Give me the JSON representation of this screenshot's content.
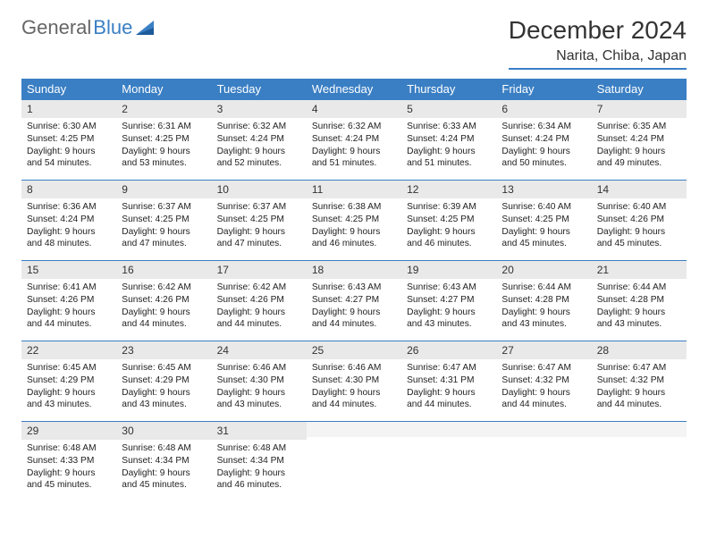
{
  "brand": {
    "part1": "General",
    "part2": "Blue"
  },
  "title": "December 2024",
  "location": "Narita, Chiba, Japan",
  "colors": {
    "header_bg": "#3a7fc4",
    "header_text": "#ffffff",
    "daynum_bg": "#e9e9e9",
    "border": "#3a7fc4",
    "text": "#333333",
    "page_bg": "#ffffff"
  },
  "font": {
    "family": "Arial",
    "title_size": 28,
    "location_size": 16,
    "header_size": 13,
    "body_size": 10.2
  },
  "weekdays": [
    "Sunday",
    "Monday",
    "Tuesday",
    "Wednesday",
    "Thursday",
    "Friday",
    "Saturday"
  ],
  "days": [
    {
      "n": "1",
      "sr": "6:30 AM",
      "ss": "4:25 PM",
      "dl": "9 hours and 54 minutes."
    },
    {
      "n": "2",
      "sr": "6:31 AM",
      "ss": "4:25 PM",
      "dl": "9 hours and 53 minutes."
    },
    {
      "n": "3",
      "sr": "6:32 AM",
      "ss": "4:24 PM",
      "dl": "9 hours and 52 minutes."
    },
    {
      "n": "4",
      "sr": "6:32 AM",
      "ss": "4:24 PM",
      "dl": "9 hours and 51 minutes."
    },
    {
      "n": "5",
      "sr": "6:33 AM",
      "ss": "4:24 PM",
      "dl": "9 hours and 51 minutes."
    },
    {
      "n": "6",
      "sr": "6:34 AM",
      "ss": "4:24 PM",
      "dl": "9 hours and 50 minutes."
    },
    {
      "n": "7",
      "sr": "6:35 AM",
      "ss": "4:24 PM",
      "dl": "9 hours and 49 minutes."
    },
    {
      "n": "8",
      "sr": "6:36 AM",
      "ss": "4:24 PM",
      "dl": "9 hours and 48 minutes."
    },
    {
      "n": "9",
      "sr": "6:37 AM",
      "ss": "4:25 PM",
      "dl": "9 hours and 47 minutes."
    },
    {
      "n": "10",
      "sr": "6:37 AM",
      "ss": "4:25 PM",
      "dl": "9 hours and 47 minutes."
    },
    {
      "n": "11",
      "sr": "6:38 AM",
      "ss": "4:25 PM",
      "dl": "9 hours and 46 minutes."
    },
    {
      "n": "12",
      "sr": "6:39 AM",
      "ss": "4:25 PM",
      "dl": "9 hours and 46 minutes."
    },
    {
      "n": "13",
      "sr": "6:40 AM",
      "ss": "4:25 PM",
      "dl": "9 hours and 45 minutes."
    },
    {
      "n": "14",
      "sr": "6:40 AM",
      "ss": "4:26 PM",
      "dl": "9 hours and 45 minutes."
    },
    {
      "n": "15",
      "sr": "6:41 AM",
      "ss": "4:26 PM",
      "dl": "9 hours and 44 minutes."
    },
    {
      "n": "16",
      "sr": "6:42 AM",
      "ss": "4:26 PM",
      "dl": "9 hours and 44 minutes."
    },
    {
      "n": "17",
      "sr": "6:42 AM",
      "ss": "4:26 PM",
      "dl": "9 hours and 44 minutes."
    },
    {
      "n": "18",
      "sr": "6:43 AM",
      "ss": "4:27 PM",
      "dl": "9 hours and 44 minutes."
    },
    {
      "n": "19",
      "sr": "6:43 AM",
      "ss": "4:27 PM",
      "dl": "9 hours and 43 minutes."
    },
    {
      "n": "20",
      "sr": "6:44 AM",
      "ss": "4:28 PM",
      "dl": "9 hours and 43 minutes."
    },
    {
      "n": "21",
      "sr": "6:44 AM",
      "ss": "4:28 PM",
      "dl": "9 hours and 43 minutes."
    },
    {
      "n": "22",
      "sr": "6:45 AM",
      "ss": "4:29 PM",
      "dl": "9 hours and 43 minutes."
    },
    {
      "n": "23",
      "sr": "6:45 AM",
      "ss": "4:29 PM",
      "dl": "9 hours and 43 minutes."
    },
    {
      "n": "24",
      "sr": "6:46 AM",
      "ss": "4:30 PM",
      "dl": "9 hours and 43 minutes."
    },
    {
      "n": "25",
      "sr": "6:46 AM",
      "ss": "4:30 PM",
      "dl": "9 hours and 44 minutes."
    },
    {
      "n": "26",
      "sr": "6:47 AM",
      "ss": "4:31 PM",
      "dl": "9 hours and 44 minutes."
    },
    {
      "n": "27",
      "sr": "6:47 AM",
      "ss": "4:32 PM",
      "dl": "9 hours and 44 minutes."
    },
    {
      "n": "28",
      "sr": "6:47 AM",
      "ss": "4:32 PM",
      "dl": "9 hours and 44 minutes."
    },
    {
      "n": "29",
      "sr": "6:48 AM",
      "ss": "4:33 PM",
      "dl": "9 hours and 45 minutes."
    },
    {
      "n": "30",
      "sr": "6:48 AM",
      "ss": "4:34 PM",
      "dl": "9 hours and 45 minutes."
    },
    {
      "n": "31",
      "sr": "6:48 AM",
      "ss": "4:34 PM",
      "dl": "9 hours and 46 minutes."
    }
  ],
  "labels": {
    "sunrise": "Sunrise:",
    "sunset": "Sunset:",
    "daylight": "Daylight:"
  },
  "layout": {
    "start_weekday": 0,
    "rows": 5,
    "cols": 7,
    "trailing_empty": 4
  }
}
